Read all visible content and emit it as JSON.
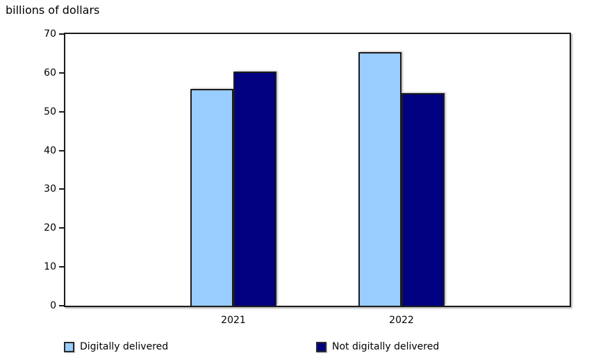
{
  "title": "billions of dollars",
  "chart_data": {
    "type": "bar",
    "title": "billions of dollars",
    "categories": [
      "2021",
      "2022"
    ],
    "series": [
      {
        "name": "Digitally delivered",
        "color": "#99CCFF",
        "values": [
          55.9,
          65.4
        ]
      },
      {
        "name": "Not digitally delivered",
        "color": "#000080",
        "values": [
          60.3,
          54.8
        ]
      }
    ],
    "xlabel": "",
    "ylabel": "billions of dollars",
    "ylim": [
      0,
      70
    ],
    "yticks": [
      0,
      10,
      20,
      30,
      40,
      50,
      60,
      70
    ],
    "grid": false,
    "legend_position": "bottom",
    "colors": {
      "bar_border": "#1c1c1c",
      "axis": "#1a1a1a",
      "text": "#000000",
      "background": "#ffffff"
    }
  }
}
